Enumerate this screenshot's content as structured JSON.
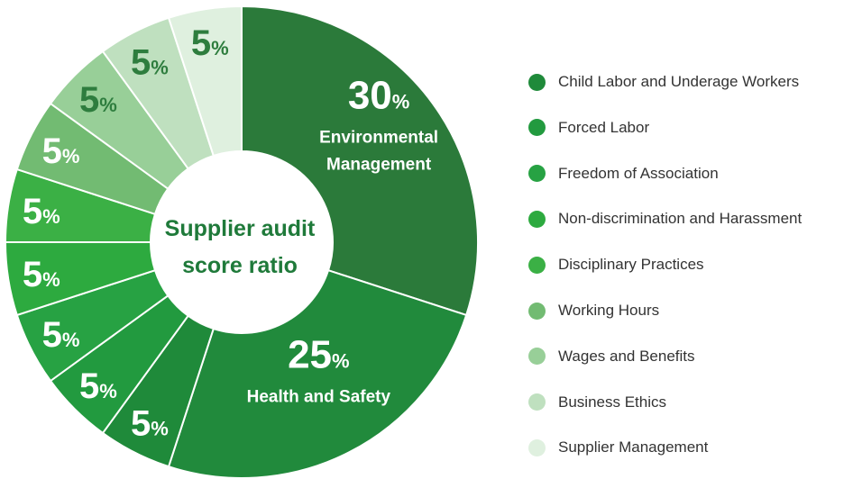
{
  "chart_data": {
    "type": "pie",
    "title": "Supplier audit score ratio",
    "slices": [
      {
        "label": "Environmental Management",
        "value": 30,
        "color": "#2b7a3a",
        "label_color": "#ffffff"
      },
      {
        "label": "Health and Safety",
        "value": 25,
        "color": "#218a3c",
        "label_color": "#ffffff"
      },
      {
        "label": "Child Labor and Underage Workers",
        "value": 5,
        "color": "#1f8a3a",
        "label_color": "#ffffff"
      },
      {
        "label": "Forced Labor",
        "value": 5,
        "color": "#229a3f",
        "label_color": "#ffffff"
      },
      {
        "label": "Freedom of Association",
        "value": 5,
        "color": "#27a243",
        "label_color": "#ffffff"
      },
      {
        "label": "Non-discrimination and Harassment",
        "value": 5,
        "color": "#2daa3f",
        "label_color": "#ffffff"
      },
      {
        "label": "Disciplinary Practices",
        "value": 5,
        "color": "#3bb045",
        "label_color": "#ffffff"
      },
      {
        "label": "Working Hours",
        "value": 5,
        "color": "#72bb72",
        "label_color": "#ffffff"
      },
      {
        "label": "Wages and Benefits",
        "value": 5,
        "color": "#98cf98",
        "label_color": "#2e7d3e"
      },
      {
        "label": "Business Ethics",
        "value": 5,
        "color": "#bfe0bf",
        "label_color": "#2e7d3e"
      },
      {
        "label": "Supplier Management",
        "value": 5,
        "color": "#dff0df",
        "label_color": "#2e7d3e"
      }
    ],
    "unit": "%",
    "center_title_lines": [
      "Supplier audit",
      "score ratio"
    ],
    "segment_labels": [
      {
        "lines": [
          "Environmental",
          "Management"
        ]
      },
      {
        "lines": [
          "Health and Safety"
        ]
      }
    ],
    "legend": {
      "placement": "right",
      "items": [
        {
          "label": "Child Labor and Underage Workers",
          "color": "#1f8a3a"
        },
        {
          "label": "Forced Labor",
          "color": "#229a3f"
        },
        {
          "label": "Freedom of Association",
          "color": "#27a243"
        },
        {
          "label": "Non-discrimination and Harassment",
          "color": "#2daa3f"
        },
        {
          "label": "Disciplinary Practices",
          "color": "#3bb045"
        },
        {
          "label": "Working Hours",
          "color": "#72bb72"
        },
        {
          "label": "Wages and Benefits",
          "color": "#98cf98"
        },
        {
          "label": "Business Ethics",
          "color": "#bfe0bf"
        },
        {
          "label": "Supplier Management",
          "color": "#dff0df"
        }
      ]
    }
  }
}
